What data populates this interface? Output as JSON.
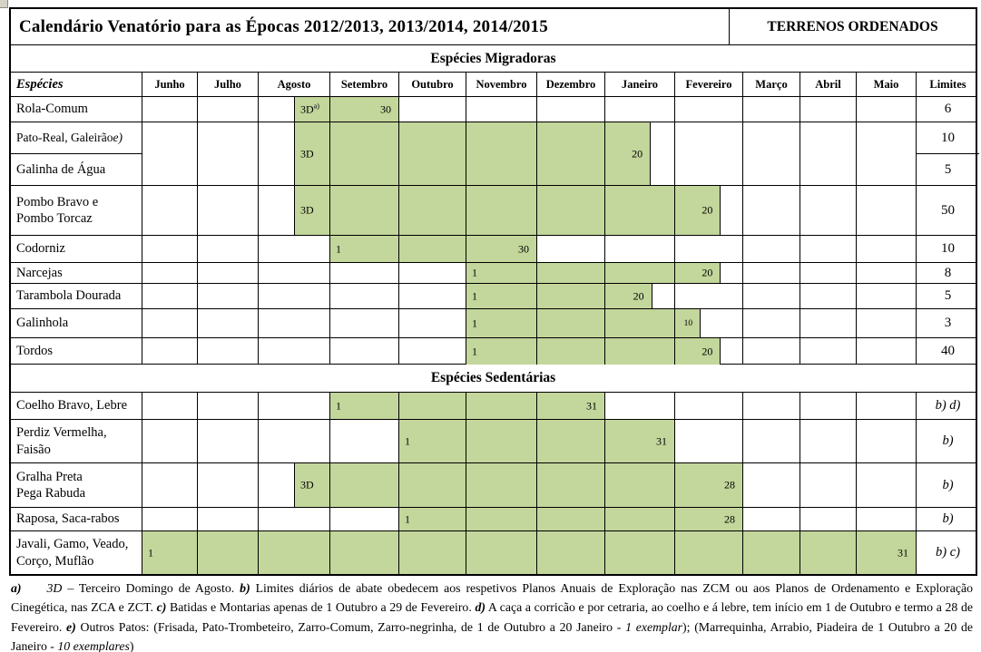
{
  "title": "Calendário Venatório para as Épocas 2012/2013, 2013/2014, 2014/2015",
  "badge": "TERRENOS ORDENADOS",
  "colors": {
    "bar_fill": "#c3d69b",
    "border": "#000000"
  },
  "header": {
    "species_label": "Espécies",
    "limits_label": "Limites"
  },
  "months": [
    "Junho",
    "Julho",
    "Agosto",
    "Setembro",
    "Outubro",
    "Novembro",
    "Dezembro",
    "Janeiro",
    "Fevereiro",
    "Março",
    "Abril",
    "Maio"
  ],
  "sections": [
    {
      "id": "migradoras",
      "label": "Espécies Migradoras",
      "rows": [
        {
          "names": [
            {
              "t": "Rola-Comum"
            }
          ],
          "limits": [
            {
              "t": "6"
            }
          ],
          "bar": {
            "startM": 2,
            "startFrac": 0.5,
            "endM": 3,
            "endFrac": 1,
            "startLabel": "3D",
            "startSup": "a)",
            "endLabel": "30"
          }
        },
        {
          "pair": true,
          "names": [
            {
              "t": "Pato-Real, Galeirão ",
              "suffix": "e)"
            },
            {
              "t": "Galinha de Água"
            }
          ],
          "limits": [
            {
              "t": "10"
            },
            {
              "t": "5"
            }
          ],
          "bar": {
            "startM": 2,
            "startFrac": 0.5,
            "endM": 7,
            "endFrac": 0.66,
            "startLabel": "3D",
            "endLabel": "20"
          }
        },
        {
          "names": [
            {
              "t": "Pombo Bravo e"
            },
            {
              "t": "Pombo Torcaz"
            }
          ],
          "limits": [
            {
              "t": "50"
            }
          ],
          "bar": {
            "startM": 2,
            "startFrac": 0.5,
            "endM": 8,
            "endFrac": 0.68,
            "startLabel": "3D",
            "endLabel": "20"
          }
        },
        {
          "names": [
            {
              "t": "Codorniz"
            }
          ],
          "limits": [
            {
              "t": "10"
            }
          ],
          "bar": {
            "startM": 3,
            "startFrac": 0,
            "endM": 5,
            "endFrac": 1,
            "startLabel": "1",
            "endLabel": "30"
          }
        },
        {
          "names": [
            {
              "t": "Narcejas"
            }
          ],
          "limits": [
            {
              "t": "8"
            }
          ],
          "bar": {
            "startM": 5,
            "startFrac": 0,
            "endM": 8,
            "endFrac": 0.68,
            "startLabel": "1",
            "endLabel": "20"
          }
        },
        {
          "names": [
            {
              "t": "Tarambola Dourada"
            }
          ],
          "limits": [
            {
              "t": "5"
            }
          ],
          "bar": {
            "startM": 5,
            "startFrac": 0,
            "endM": 7,
            "endFrac": 0.68,
            "startLabel": "1",
            "endLabel": "20"
          }
        },
        {
          "names": [
            {
              "t": "Galinhola"
            }
          ],
          "limits": [
            {
              "t": "3"
            }
          ],
          "bar": {
            "startM": 5,
            "startFrac": 0,
            "endM": 8,
            "endFrac": 0.38,
            "startLabel": "1",
            "endLabel": "10",
            "endSmall": true
          }
        },
        {
          "names": [
            {
              "t": "Tordos"
            }
          ],
          "limits": [
            {
              "t": "40"
            }
          ],
          "bar": {
            "startM": 5,
            "startFrac": 0,
            "endM": 8,
            "endFrac": 0.68,
            "startLabel": "1",
            "endLabel": "20"
          }
        }
      ]
    },
    {
      "id": "sedentarias",
      "label": "Espécies Sedentárias",
      "rows": [
        {
          "names": [
            {
              "t": "Coelho Bravo, Lebre"
            }
          ],
          "limits": [
            {
              "t": "b) d)",
              "italic": true
            }
          ],
          "bar": {
            "startM": 3,
            "startFrac": 0,
            "endM": 6,
            "endFrac": 1,
            "startLabel": "1",
            "endLabel": "31"
          }
        },
        {
          "names": [
            {
              "t": "Perdiz Vermelha,"
            },
            {
              "t": "Faisão"
            }
          ],
          "limits": [
            {
              "t": "b)",
              "italic": true
            }
          ],
          "bar": {
            "startM": 4,
            "startFrac": 0,
            "endM": 7,
            "endFrac": 1,
            "startLabel": "1",
            "endLabel": "31"
          }
        },
        {
          "names": [
            {
              "t": "Gralha Preta"
            },
            {
              "t": "Pega Rabuda"
            }
          ],
          "limits": [
            {
              "t": "b)",
              "italic": true
            }
          ],
          "bar": {
            "startM": 2,
            "startFrac": 0.5,
            "endM": 8,
            "endFrac": 1,
            "startLabel": "3D",
            "endLabel": "28"
          }
        },
        {
          "names": [
            {
              "t": "Raposa, Saca-rabos"
            }
          ],
          "limits": [
            {
              "t": "b)",
              "italic": true
            }
          ],
          "bar": {
            "startM": 4,
            "startFrac": 0,
            "endM": 8,
            "endFrac": 1,
            "startLabel": "1",
            "endLabel": "28"
          }
        },
        {
          "names": [
            {
              "t": "Javali, Gamo, Veado,"
            },
            {
              "t": "Corço, Muflão"
            }
          ],
          "limits": [
            {
              "t": "b) c)",
              "italic": true
            }
          ],
          "bar": {
            "startM": 0,
            "startFrac": 0,
            "endM": 11,
            "endFrac": 1,
            "startLabel": "1",
            "endLabel": "31"
          }
        }
      ]
    }
  ],
  "footnotes": {
    "segments": [
      {
        "t": "a)",
        "b": true,
        "i": true,
        "gap": true
      },
      {
        "t": "3D",
        "i": true
      },
      {
        "t": " – Terceiro Domingo de Agosto. "
      },
      {
        "t": "b)",
        "b": true,
        "i": true
      },
      {
        "t": " Limites diários de abate obedecem aos respetivos Planos Anuais de Exploração nas ZCM ou aos Planos de Ordenamento e Exploração Cinegética, nas ZCA e ZCT. "
      },
      {
        "t": "c)",
        "b": true,
        "i": true
      },
      {
        "t": " Batidas e Montarias apenas de 1 Outubro a 29 de Fevereiro. "
      },
      {
        "t": "d)",
        "b": true,
        "i": true
      },
      {
        "t": " A caça a corricão e por cetraria, ao coelho e á lebre, tem início em 1 de Outubro e termo a 28 de Fevereiro. "
      },
      {
        "t": "e)",
        "b": true,
        "i": true
      },
      {
        "t": " Outros Patos: (Frisada, Pato-Trombeteiro, Zarro-Comum, Zarro-negrinha, de 1 de Outubro a 20 Janeiro - "
      },
      {
        "t": "1 exemplar",
        "i": true
      },
      {
        "t": "); (Marrequinha, Arrabio, Piadeira de 1 Outubro a 20 de Janeiro - "
      },
      {
        "t": "10 exemplares",
        "i": true
      },
      {
        "t": ")"
      }
    ]
  }
}
